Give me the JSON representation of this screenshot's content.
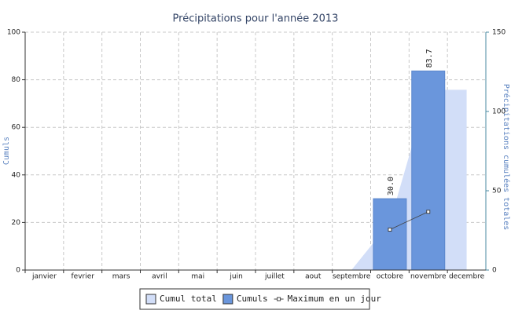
{
  "chart_data": {
    "type": "combo",
    "title": "Précipitations pour l'année 2013",
    "y_label": "Cumuls",
    "y2_label": "Précipitations cumulées totales",
    "categories": [
      "janvier",
      "fevrier",
      "mars",
      "avril",
      "mai",
      "juin",
      "juillet",
      "aout",
      "septembre",
      "octobre",
      "novembre",
      "decembre"
    ],
    "ylim": [
      0,
      100
    ],
    "yticks": [
      0,
      20,
      40,
      60,
      80,
      100
    ],
    "y2lim": [
      0,
      150
    ],
    "y2ticks": [
      0,
      50,
      100,
      150
    ],
    "grid": true,
    "legend": "bottom",
    "series": [
      {
        "name": "Cumul total",
        "kind": "area",
        "axis": "y2",
        "color": "#d2def8",
        "values": [
          null,
          null,
          null,
          null,
          null,
          null,
          null,
          null,
          0,
          30,
          113.7,
          113.7
        ]
      },
      {
        "name": "Cumuls",
        "kind": "bar",
        "color": "#6a96dc",
        "values": [
          null,
          null,
          null,
          null,
          null,
          null,
          null,
          null,
          null,
          30,
          83.7,
          null
        ],
        "value_labels": [
          null,
          null,
          null,
          null,
          null,
          null,
          null,
          null,
          null,
          "30.0",
          "83.7",
          null
        ]
      },
      {
        "name": "Maximum en un jour",
        "kind": "line",
        "color": "#444444",
        "values": [
          null,
          null,
          null,
          null,
          null,
          null,
          null,
          null,
          null,
          17,
          24.5,
          null
        ]
      }
    ]
  }
}
